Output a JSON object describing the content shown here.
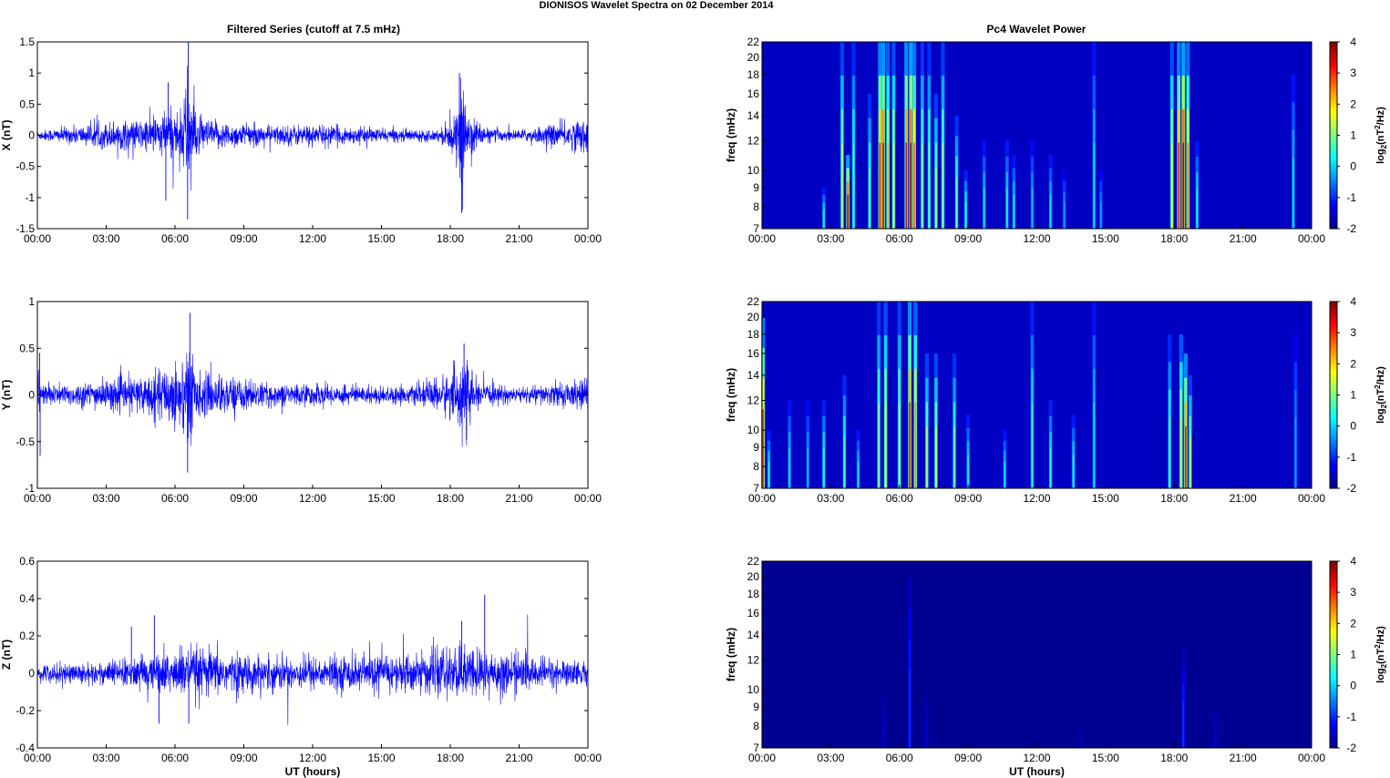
{
  "figure": {
    "title": "DIONISOS Wavelet Spectra on 02 December  2014",
    "left_title": "Filtered Series (cutoff at 7.5 mHz)",
    "right_title": "Pc4 Wavelet Power",
    "xlabel": "UT (hours)",
    "freq_label": "freq (mHz)",
    "colorbar_label_parts": [
      "log",
      "2",
      "(nT",
      "2",
      "/Hz)"
    ]
  },
  "colors": {
    "trace": "#0000ff",
    "spectrogram_background": "#00008f",
    "colormap": "jet"
  },
  "chart_data": [
    {
      "type": "line",
      "title": "Filtered Series (cutoff at 7.5 mHz)",
      "ylabel": "X (nT)",
      "ylim": [
        -1.5,
        1.5
      ],
      "yticks": [
        -1.5,
        -1,
        -0.5,
        0,
        0.5,
        1,
        1.5
      ],
      "ytick_labels": [
        "-1.5",
        "-1",
        "-0.5",
        "0",
        "0.5",
        "1",
        "1.5"
      ],
      "xlim": [
        0,
        24
      ],
      "xticks": [
        0,
        3,
        6,
        9,
        12,
        15,
        18,
        21,
        24
      ],
      "xtick_labels": [
        "00:00",
        "03:00",
        "06:00",
        "09:00",
        "12:00",
        "15:00",
        "18:00",
        "21:00",
        "00:00"
      ],
      "baseline_amplitude": 0.07,
      "envelope": [
        {
          "hour": 0.0,
          "amp": 0.1
        },
        {
          "hour": 0.4,
          "amp": 0.12
        },
        {
          "hour": 1.5,
          "amp": 0.18
        },
        {
          "hour": 2.5,
          "amp": 0.22
        },
        {
          "hour": 3.4,
          "amp": 0.3
        },
        {
          "hour": 4.3,
          "amp": 0.3
        },
        {
          "hour": 5.0,
          "amp": 0.38
        },
        {
          "hour": 5.6,
          "amp": 0.5
        },
        {
          "hour": 6.3,
          "amp": 0.55
        },
        {
          "hour": 6.6,
          "amp": 1.4
        },
        {
          "hour": 7.0,
          "amp": 0.35
        },
        {
          "hour": 7.6,
          "amp": 0.3
        },
        {
          "hour": 8.5,
          "amp": 0.25
        },
        {
          "hour": 10.0,
          "amp": 0.2
        },
        {
          "hour": 12.0,
          "amp": 0.22
        },
        {
          "hour": 14.0,
          "amp": 0.16
        },
        {
          "hour": 16.0,
          "amp": 0.12
        },
        {
          "hour": 17.5,
          "amp": 0.12
        },
        {
          "hour": 18.3,
          "amp": 0.45
        },
        {
          "hour": 18.5,
          "amp": 1.05
        },
        {
          "hour": 18.8,
          "amp": 0.5
        },
        {
          "hour": 19.5,
          "amp": 0.15
        },
        {
          "hour": 21.0,
          "amp": 0.1
        },
        {
          "hour": 23.9,
          "amp": 0.35
        },
        {
          "hour": 24.0,
          "amp": 0.4
        }
      ],
      "extremes": [
        {
          "hour": 6.58,
          "value": 1.5
        },
        {
          "hour": 6.55,
          "value": -1.35
        },
        {
          "hour": 18.4,
          "value": 1.0
        },
        {
          "hour": 18.5,
          "value": -1.25
        },
        {
          "hour": 5.7,
          "value": 0.85
        },
        {
          "hour": 5.6,
          "value": -1.05
        }
      ]
    },
    {
      "type": "line",
      "title": "",
      "ylabel": "Y (nT)",
      "ylim": [
        -1,
        1
      ],
      "yticks": [
        -1,
        -0.5,
        0,
        0.5,
        1
      ],
      "ytick_labels": [
        "-1",
        "-0.5",
        "0",
        "0.5",
        "1"
      ],
      "xlim": [
        0,
        24
      ],
      "xticks": [
        0,
        3,
        6,
        9,
        12,
        15,
        18,
        21,
        24
      ],
      "xtick_labels": [
        "00:00",
        "03:00",
        "06:00",
        "09:00",
        "12:00",
        "15:00",
        "18:00",
        "21:00",
        "00:00"
      ],
      "baseline_amplitude": 0.05,
      "envelope": [
        {
          "hour": 0.0,
          "amp": 0.4
        },
        {
          "hour": 0.2,
          "amp": 0.15
        },
        {
          "hour": 1.5,
          "amp": 0.15
        },
        {
          "hour": 3.0,
          "amp": 0.2
        },
        {
          "hour": 4.5,
          "amp": 0.25
        },
        {
          "hour": 5.5,
          "amp": 0.35
        },
        {
          "hour": 6.4,
          "amp": 0.55
        },
        {
          "hour": 6.6,
          "amp": 0.8
        },
        {
          "hour": 7.0,
          "amp": 0.3
        },
        {
          "hour": 8.5,
          "amp": 0.25
        },
        {
          "hour": 10.0,
          "amp": 0.15
        },
        {
          "hour": 12.0,
          "amp": 0.15
        },
        {
          "hour": 14.5,
          "amp": 0.12
        },
        {
          "hour": 16.5,
          "amp": 0.12
        },
        {
          "hour": 18.0,
          "amp": 0.3
        },
        {
          "hour": 18.6,
          "amp": 0.55
        },
        {
          "hour": 19.2,
          "amp": 0.15
        },
        {
          "hour": 21.0,
          "amp": 0.1
        },
        {
          "hour": 23.9,
          "amp": 0.2
        },
        {
          "hour": 24.0,
          "amp": 0.25
        }
      ],
      "extremes": [
        {
          "hour": 6.65,
          "value": 0.88
        },
        {
          "hour": 6.55,
          "value": -0.83
        },
        {
          "hour": 18.6,
          "value": 0.55
        },
        {
          "hour": 18.7,
          "value": -0.48
        },
        {
          "hour": 0.1,
          "value": 0.45
        },
        {
          "hour": 0.12,
          "value": -0.65
        }
      ]
    },
    {
      "type": "line",
      "title": "",
      "ylabel": "Z (nT)",
      "ylim": [
        -0.4,
        0.6
      ],
      "yticks": [
        -0.4,
        -0.2,
        0,
        0.2,
        0.4,
        0.6
      ],
      "ytick_labels": [
        "-0.4",
        "-0.2",
        "0",
        "0.2",
        "0.4",
        "0.6"
      ],
      "xlim": [
        0,
        24
      ],
      "xticks": [
        0,
        3,
        6,
        9,
        12,
        15,
        18,
        21,
        24
      ],
      "xtick_labels": [
        "00:00",
        "03:00",
        "06:00",
        "09:00",
        "12:00",
        "15:00",
        "18:00",
        "21:00",
        "00:00"
      ],
      "xlabel": "UT (hours)",
      "baseline_amplitude": 0.06,
      "envelope": [
        {
          "hour": 0.0,
          "amp": 0.06
        },
        {
          "hour": 3.0,
          "amp": 0.08
        },
        {
          "hour": 5.0,
          "amp": 0.12
        },
        {
          "hour": 6.6,
          "amp": 0.18
        },
        {
          "hour": 9.0,
          "amp": 0.12
        },
        {
          "hour": 12.0,
          "amp": 0.11
        },
        {
          "hour": 15.0,
          "amp": 0.12
        },
        {
          "hour": 17.0,
          "amp": 0.14
        },
        {
          "hour": 18.6,
          "amp": 0.18
        },
        {
          "hour": 19.5,
          "amp": 0.16
        },
        {
          "hour": 22.0,
          "amp": 0.1
        },
        {
          "hour": 24.0,
          "amp": 0.08
        }
      ],
      "extremes": [
        {
          "hour": 19.5,
          "value": 0.42
        },
        {
          "hour": 5.1,
          "value": 0.31
        },
        {
          "hour": 4.1,
          "value": 0.25
        },
        {
          "hour": 6.6,
          "value": -0.27
        },
        {
          "hour": 5.3,
          "value": -0.27
        },
        {
          "hour": 18.5,
          "value": 0.28
        }
      ]
    },
    {
      "type": "heatmap",
      "title": "Pc4 Wavelet Power",
      "ylabel": "freq (mHz)",
      "ylim": [
        7,
        22
      ],
      "yscale": "log",
      "yticks": [
        7,
        8,
        9,
        10,
        12,
        14,
        16,
        18,
        20,
        22
      ],
      "ytick_labels": [
        "7",
        "8",
        "9",
        "10",
        "12",
        "14",
        "16",
        "18",
        "20",
        "22"
      ],
      "xlim": [
        0,
        24
      ],
      "xticks": [
        0,
        3,
        6,
        9,
        12,
        15,
        18,
        21,
        24
      ],
      "xtick_labels": [
        "00:00",
        "03:00",
        "06:00",
        "09:00",
        "12:00",
        "15:00",
        "18:00",
        "21:00",
        "00:00"
      ],
      "colorbar": {
        "min": -2,
        "max": 4,
        "ticks": [
          -2,
          -1,
          0,
          1,
          2,
          3,
          4
        ],
        "tick_labels": [
          "-2",
          "-1",
          "0",
          "1",
          "2",
          "3",
          "4"
        ]
      },
      "background_level": -1.6,
      "bursts": [
        {
          "hour": 2.7,
          "peak": 0.4,
          "top_mhz": 9
        },
        {
          "hour": 3.5,
          "peak": 1.5,
          "top_mhz": 22
        },
        {
          "hour": 3.75,
          "peak": 3.8,
          "top_mhz": 11
        },
        {
          "hour": 4.0,
          "peak": 0.8,
          "top_mhz": 22
        },
        {
          "hour": 4.7,
          "peak": 1.0,
          "top_mhz": 16
        },
        {
          "hour": 5.15,
          "peak": 3.2,
          "top_mhz": 22
        },
        {
          "hour": 5.3,
          "peak": 3.6,
          "top_mhz": 22
        },
        {
          "hour": 5.5,
          "peak": 2.2,
          "top_mhz": 22
        },
        {
          "hour": 5.75,
          "peak": 1.8,
          "top_mhz": 22
        },
        {
          "hour": 6.3,
          "peak": 3.5,
          "top_mhz": 22
        },
        {
          "hour": 6.5,
          "peak": 4.0,
          "top_mhz": 22
        },
        {
          "hour": 6.65,
          "peak": 2.8,
          "top_mhz": 22
        },
        {
          "hour": 7.0,
          "peak": 1.2,
          "top_mhz": 22
        },
        {
          "hour": 7.3,
          "peak": 1.0,
          "top_mhz": 22
        },
        {
          "hour": 7.6,
          "peak": 1.4,
          "top_mhz": 16
        },
        {
          "hour": 7.9,
          "peak": 1.3,
          "top_mhz": 22
        },
        {
          "hour": 8.5,
          "peak": 1.0,
          "top_mhz": 14
        },
        {
          "hour": 8.9,
          "peak": 0.6,
          "top_mhz": 10
        },
        {
          "hour": 9.7,
          "peak": 0.2,
          "top_mhz": 12
        },
        {
          "hour": 10.7,
          "peak": 0.4,
          "top_mhz": 12
        },
        {
          "hour": 11.0,
          "peak": 0.3,
          "top_mhz": 11
        },
        {
          "hour": 11.8,
          "peak": 0.0,
          "top_mhz": 12
        },
        {
          "hour": 12.6,
          "peak": 0.2,
          "top_mhz": 11
        },
        {
          "hour": 13.2,
          "peak": -0.2,
          "top_mhz": 10
        },
        {
          "hour": 14.5,
          "peak": 0.2,
          "top_mhz": 22
        },
        {
          "hour": 14.8,
          "peak": -0.2,
          "top_mhz": 10
        },
        {
          "hour": 17.9,
          "peak": 1.8,
          "top_mhz": 22
        },
        {
          "hour": 18.2,
          "peak": 3.2,
          "top_mhz": 22
        },
        {
          "hour": 18.4,
          "peak": 4.0,
          "top_mhz": 22
        },
        {
          "hour": 18.6,
          "peak": 2.6,
          "top_mhz": 22
        },
        {
          "hour": 19.0,
          "peak": 0.4,
          "top_mhz": 12
        },
        {
          "hour": 23.2,
          "peak": 0.2,
          "top_mhz": 18
        }
      ]
    },
    {
      "type": "heatmap",
      "title": "",
      "ylabel": "freq (mHz)",
      "ylim": [
        7,
        22
      ],
      "yscale": "log",
      "yticks": [
        7,
        8,
        9,
        10,
        12,
        14,
        16,
        18,
        20,
        22
      ],
      "ytick_labels": [
        "7",
        "8",
        "9",
        "10",
        "12",
        "14",
        "16",
        "18",
        "20",
        "22"
      ],
      "xlim": [
        0,
        24
      ],
      "xticks": [
        0,
        3,
        6,
        9,
        12,
        15,
        18,
        21,
        24
      ],
      "xtick_labels": [
        "00:00",
        "03:00",
        "06:00",
        "09:00",
        "12:00",
        "15:00",
        "18:00",
        "21:00",
        "00:00"
      ],
      "colorbar": {
        "min": -2,
        "max": 4,
        "ticks": [
          -2,
          -1,
          0,
          1,
          2,
          3,
          4
        ],
        "tick_labels": [
          "-2",
          "-1",
          "0",
          "1",
          "2",
          "3",
          "4"
        ]
      },
      "background_level": -1.6,
      "bursts": [
        {
          "hour": 0.05,
          "peak": 3.0,
          "top_mhz": 20
        },
        {
          "hour": 0.3,
          "peak": 0.4,
          "top_mhz": 10
        },
        {
          "hour": 1.2,
          "peak": 0.2,
          "top_mhz": 12
        },
        {
          "hour": 2.0,
          "peak": 0.0,
          "top_mhz": 12
        },
        {
          "hour": 2.7,
          "peak": 0.6,
          "top_mhz": 12
        },
        {
          "hour": 3.6,
          "peak": 0.8,
          "top_mhz": 14
        },
        {
          "hour": 4.2,
          "peak": 0.2,
          "top_mhz": 10
        },
        {
          "hour": 5.1,
          "peak": 1.2,
          "top_mhz": 22
        },
        {
          "hour": 5.4,
          "peak": 1.8,
          "top_mhz": 22
        },
        {
          "hour": 6.0,
          "peak": 1.4,
          "top_mhz": 22
        },
        {
          "hour": 6.45,
          "peak": 3.4,
          "top_mhz": 22
        },
        {
          "hour": 6.7,
          "peak": 2.4,
          "top_mhz": 22
        },
        {
          "hour": 7.2,
          "peak": 1.4,
          "top_mhz": 16
        },
        {
          "hour": 7.6,
          "peak": 1.6,
          "top_mhz": 16
        },
        {
          "hour": 8.4,
          "peak": 1.0,
          "top_mhz": 16
        },
        {
          "hour": 9.0,
          "peak": 0.4,
          "top_mhz": 11
        },
        {
          "hour": 10.6,
          "peak": 0.2,
          "top_mhz": 10
        },
        {
          "hour": 11.8,
          "peak": 0.6,
          "top_mhz": 22
        },
        {
          "hour": 12.6,
          "peak": 0.6,
          "top_mhz": 12
        },
        {
          "hour": 13.6,
          "peak": 0.4,
          "top_mhz": 11
        },
        {
          "hour": 14.5,
          "peak": 0.2,
          "top_mhz": 22
        },
        {
          "hour": 17.8,
          "peak": 0.8,
          "top_mhz": 18
        },
        {
          "hour": 18.3,
          "peak": 2.0,
          "top_mhz": 18
        },
        {
          "hour": 18.5,
          "peak": 3.4,
          "top_mhz": 16
        },
        {
          "hour": 18.7,
          "peak": 1.4,
          "top_mhz": 14
        },
        {
          "hour": 23.3,
          "peak": -0.2,
          "top_mhz": 18
        }
      ]
    },
    {
      "type": "heatmap",
      "title": "",
      "ylabel": "freq (mHz)",
      "ylim": [
        7,
        22
      ],
      "yscale": "log",
      "yticks": [
        7,
        8,
        9,
        10,
        12,
        14,
        16,
        18,
        20,
        22
      ],
      "ytick_labels": [
        "7",
        "8",
        "9",
        "10",
        "12",
        "14",
        "16",
        "18",
        "20",
        "22"
      ],
      "xlim": [
        0,
        24
      ],
      "xticks": [
        0,
        3,
        6,
        9,
        12,
        15,
        18,
        21,
        24
      ],
      "xtick_labels": [
        "00:00",
        "03:00",
        "06:00",
        "09:00",
        "12:00",
        "15:00",
        "18:00",
        "21:00",
        "00:00"
      ],
      "xlabel": "UT (hours)",
      "colorbar": {
        "min": -2,
        "max": 4,
        "ticks": [
          -2,
          -1,
          0,
          1,
          2,
          3,
          4
        ],
        "tick_labels": [
          "-2",
          "-1",
          "0",
          "1",
          "2",
          "3",
          "4"
        ]
      },
      "background_level": -1.9,
      "bursts": [
        {
          "hour": 5.3,
          "peak": -1.5,
          "top_mhz": 10
        },
        {
          "hour": 6.45,
          "peak": -0.9,
          "top_mhz": 20
        },
        {
          "hour": 7.2,
          "peak": -1.5,
          "top_mhz": 10
        },
        {
          "hour": 13.9,
          "peak": -1.6,
          "top_mhz": 8
        },
        {
          "hour": 18.4,
          "peak": -0.9,
          "top_mhz": 13
        },
        {
          "hour": 19.8,
          "peak": -1.5,
          "top_mhz": 9
        }
      ]
    }
  ]
}
